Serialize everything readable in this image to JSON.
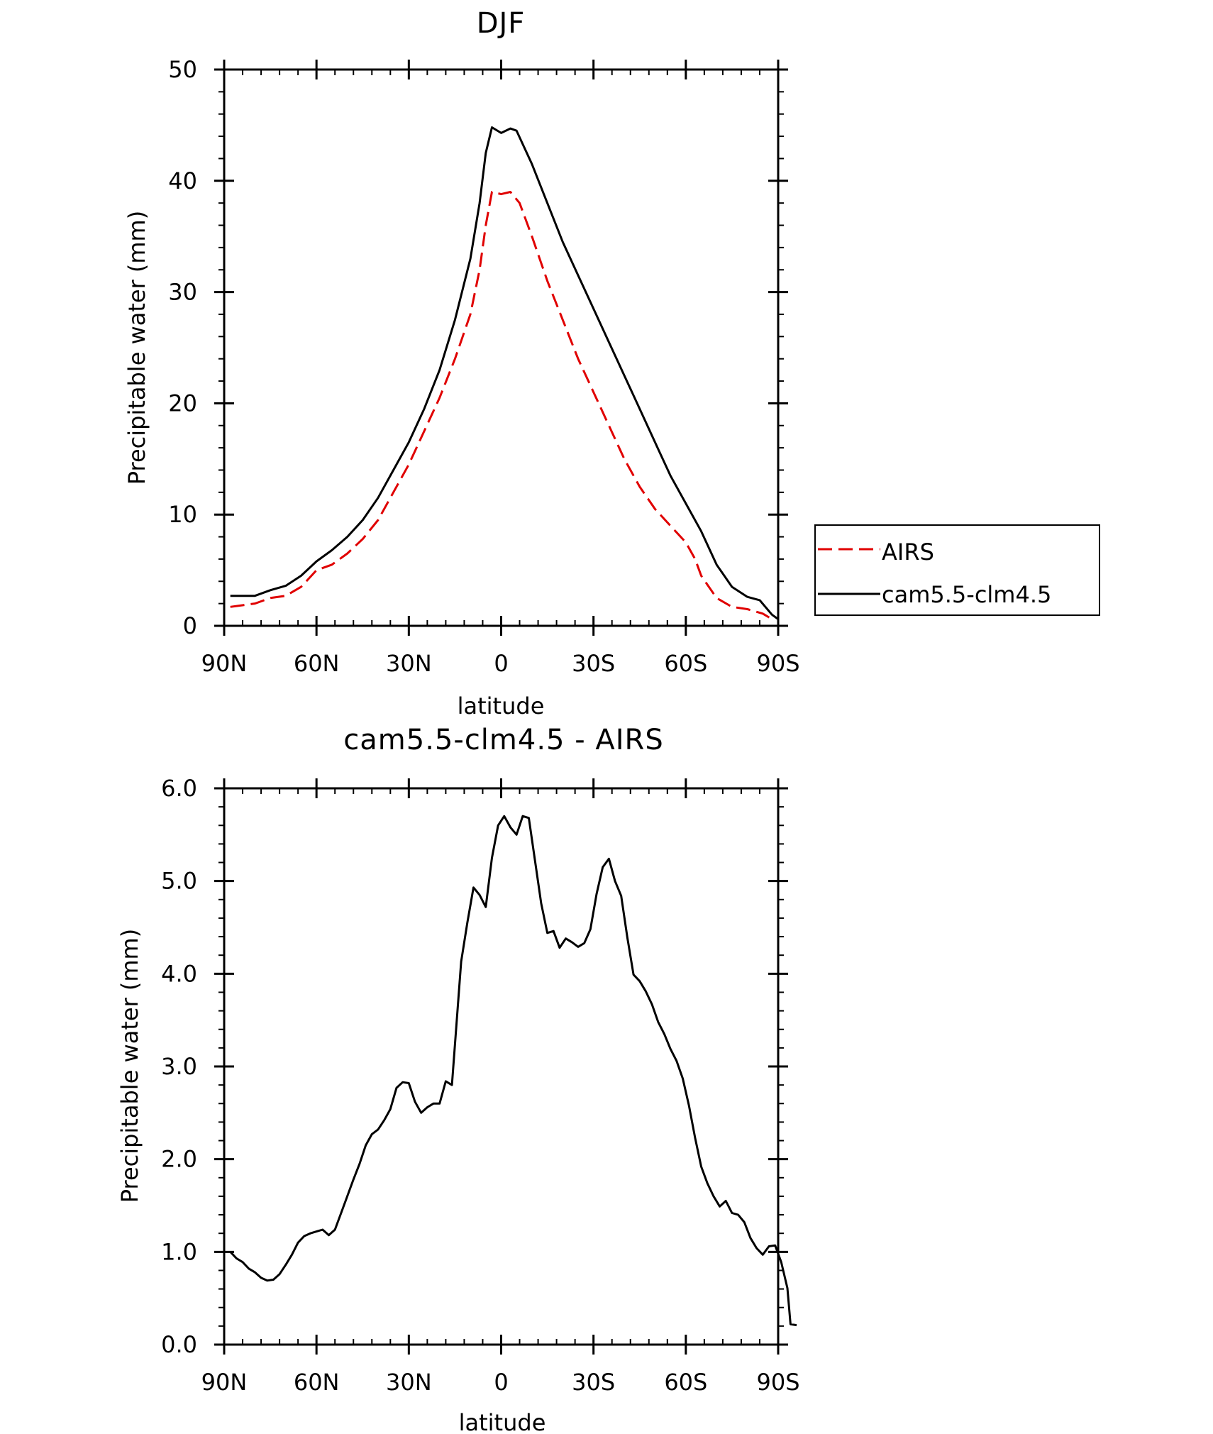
{
  "chart_data": [
    {
      "type": "line",
      "title": "DJF",
      "xlabel": "latitude",
      "ylabel": "Precipitable water (mm)",
      "xlim": [
        -90,
        90
      ],
      "ylim": [
        0,
        50
      ],
      "xticks": [
        -90,
        -60,
        -30,
        0,
        30,
        60,
        90
      ],
      "xtick_labels": [
        "90N",
        "60N",
        "30N",
        "0",
        "30S",
        "60S",
        "90S"
      ],
      "yticks": [
        0,
        10,
        20,
        30,
        40,
        50
      ],
      "ytick_labels": [
        "0",
        "10",
        "20",
        "30",
        "40",
        "50"
      ],
      "legend_position": "right",
      "series": [
        {
          "name": "AIRS",
          "color": "#e00000",
          "dash": "dashed",
          "points": [
            [
              -88,
              1.7
            ],
            [
              -80,
              2.0
            ],
            [
              -75,
              2.5
            ],
            [
              -70,
              2.7
            ],
            [
              -65,
              3.5
            ],
            [
              -60,
              5.0
            ],
            [
              -55,
              5.5
            ],
            [
              -50,
              6.5
            ],
            [
              -45,
              7.8
            ],
            [
              -40,
              9.5
            ],
            [
              -35,
              12.0
            ],
            [
              -30,
              14.5
            ],
            [
              -25,
              17.5
            ],
            [
              -20,
              20.5
            ],
            [
              -15,
              24.0
            ],
            [
              -10,
              28.0
            ],
            [
              -7,
              32.0
            ],
            [
              -5,
              36.0
            ],
            [
              -3,
              39.0
            ],
            [
              0,
              38.8
            ],
            [
              3,
              39.0
            ],
            [
              6,
              38.0
            ],
            [
              10,
              35.0
            ],
            [
              15,
              31.0
            ],
            [
              20,
              27.5
            ],
            [
              25,
              24.0
            ],
            [
              30,
              21.0
            ],
            [
              35,
              18.0
            ],
            [
              40,
              15.0
            ],
            [
              45,
              12.5
            ],
            [
              50,
              10.5
            ],
            [
              55,
              9.0
            ],
            [
              60,
              7.5
            ],
            [
              63,
              6.0
            ],
            [
              65,
              4.5
            ],
            [
              70,
              2.5
            ],
            [
              75,
              1.7
            ],
            [
              80,
              1.5
            ],
            [
              85,
              1.1
            ],
            [
              88,
              0.6
            ]
          ]
        },
        {
          "name": "cam5.5-clm4.5",
          "color": "#000000",
          "dash": "solid",
          "points": [
            [
              -88,
              2.7
            ],
            [
              -80,
              2.7
            ],
            [
              -75,
              3.2
            ],
            [
              -70,
              3.6
            ],
            [
              -65,
              4.5
            ],
            [
              -60,
              5.8
            ],
            [
              -55,
              6.8
            ],
            [
              -50,
              8.0
            ],
            [
              -45,
              9.5
            ],
            [
              -40,
              11.5
            ],
            [
              -35,
              14.0
            ],
            [
              -30,
              16.5
            ],
            [
              -25,
              19.5
            ],
            [
              -20,
              23.0
            ],
            [
              -15,
              27.5
            ],
            [
              -10,
              33.0
            ],
            [
              -7,
              38.0
            ],
            [
              -5,
              42.5
            ],
            [
              -3,
              44.8
            ],
            [
              0,
              44.3
            ],
            [
              3,
              44.7
            ],
            [
              5,
              44.5
            ],
            [
              10,
              41.5
            ],
            [
              15,
              38.0
            ],
            [
              20,
              34.5
            ],
            [
              25,
              31.5
            ],
            [
              30,
              28.5
            ],
            [
              35,
              25.5
            ],
            [
              40,
              22.5
            ],
            [
              45,
              19.5
            ],
            [
              50,
              16.5
            ],
            [
              55,
              13.5
            ],
            [
              60,
              11.0
            ],
            [
              65,
              8.5
            ],
            [
              70,
              5.5
            ],
            [
              75,
              3.5
            ],
            [
              80,
              2.6
            ],
            [
              84,
              2.3
            ],
            [
              88,
              1.0
            ],
            [
              90,
              0.6
            ]
          ]
        }
      ]
    },
    {
      "type": "line",
      "title": "cam5.5-clm4.5 - AIRS",
      "xlabel": "latitude",
      "ylabel": "Precipitable water (mm)",
      "xlim": [
        -90,
        90
      ],
      "ylim": [
        0,
        6
      ],
      "xticks": [
        -90,
        -60,
        -30,
        0,
        30,
        60,
        90
      ],
      "xtick_labels": [
        "90N",
        "60N",
        "30N",
        "0",
        "30S",
        "60S",
        "90S"
      ],
      "yticks": [
        0,
        1,
        2,
        3,
        4,
        5,
        6
      ],
      "ytick_labels": [
        "0.0",
        "1.0",
        "2.0",
        "3.0",
        "4.0",
        "5.0",
        "6.0"
      ],
      "series": [
        {
          "color": "#000000",
          "dash": "solid",
          "points": [
            [
              -88,
              1.0
            ],
            [
              -86,
              0.93
            ],
            [
              -84,
              0.89
            ],
            [
              -82,
              0.82
            ],
            [
              -80,
              0.78
            ],
            [
              -78,
              0.72
            ],
            [
              -76,
              0.69
            ],
            [
              -74,
              0.7
            ],
            [
              -72,
              0.76
            ],
            [
              -70,
              0.86
            ],
            [
              -68,
              0.97
            ],
            [
              -66,
              1.1
            ],
            [
              -64,
              1.17
            ],
            [
              -62,
              1.2
            ],
            [
              -60,
              1.22
            ],
            [
              -58,
              1.24
            ],
            [
              -56,
              1.18
            ],
            [
              -54,
              1.24
            ],
            [
              -52,
              1.42
            ],
            [
              -50,
              1.6
            ],
            [
              -48,
              1.78
            ],
            [
              -46,
              1.95
            ],
            [
              -44,
              2.15
            ],
            [
              -42,
              2.27
            ],
            [
              -40,
              2.32
            ],
            [
              -38,
              2.42
            ],
            [
              -36,
              2.54
            ],
            [
              -34,
              2.77
            ],
            [
              -32,
              2.83
            ],
            [
              -30,
              2.82
            ],
            [
              -28,
              2.62
            ],
            [
              -26,
              2.5
            ],
            [
              -24,
              2.56
            ],
            [
              -22,
              2.6
            ],
            [
              -20,
              2.6
            ],
            [
              -18,
              2.84
            ],
            [
              -16,
              2.8
            ],
            [
              -13,
              4.13
            ],
            [
              -11,
              4.55
            ],
            [
              -9,
              4.93
            ],
            [
              -7,
              4.85
            ],
            [
              -5,
              4.72
            ],
            [
              -3,
              5.25
            ],
            [
              -1,
              5.6
            ],
            [
              1,
              5.7
            ],
            [
              3,
              5.58
            ],
            [
              5,
              5.5
            ],
            [
              7,
              5.7
            ],
            [
              9,
              5.68
            ],
            [
              11,
              5.22
            ],
            [
              13,
              4.76
            ],
            [
              15,
              4.44
            ],
            [
              17,
              4.46
            ],
            [
              19,
              4.28
            ],
            [
              21,
              4.38
            ],
            [
              23,
              4.34
            ],
            [
              25,
              4.29
            ],
            [
              27,
              4.33
            ],
            [
              29,
              4.48
            ],
            [
              31,
              4.86
            ],
            [
              33,
              5.15
            ],
            [
              35,
              5.24
            ],
            [
              37,
              5.0
            ],
            [
              39,
              4.84
            ],
            [
              41,
              4.39
            ],
            [
              43,
              3.99
            ],
            [
              45,
              3.92
            ],
            [
              47,
              3.81
            ],
            [
              49,
              3.67
            ],
            [
              51,
              3.48
            ],
            [
              53,
              3.35
            ],
            [
              55,
              3.19
            ],
            [
              57,
              3.06
            ],
            [
              59,
              2.87
            ],
            [
              61,
              2.58
            ],
            [
              63,
              2.23
            ],
            [
              65,
              1.92
            ],
            [
              67,
              1.74
            ],
            [
              69,
              1.6
            ],
            [
              71,
              1.49
            ],
            [
              73,
              1.55
            ],
            [
              75,
              1.42
            ],
            [
              77,
              1.4
            ],
            [
              79,
              1.32
            ],
            [
              81,
              1.15
            ],
            [
              83,
              1.04
            ],
            [
              85,
              0.97
            ],
            [
              87,
              1.06
            ],
            [
              89,
              1.07
            ],
            [
              91,
              0.89
            ],
            [
              93,
              0.61
            ],
            [
              94,
              0.22
            ],
            [
              96,
              0.21
            ]
          ]
        }
      ]
    }
  ]
}
